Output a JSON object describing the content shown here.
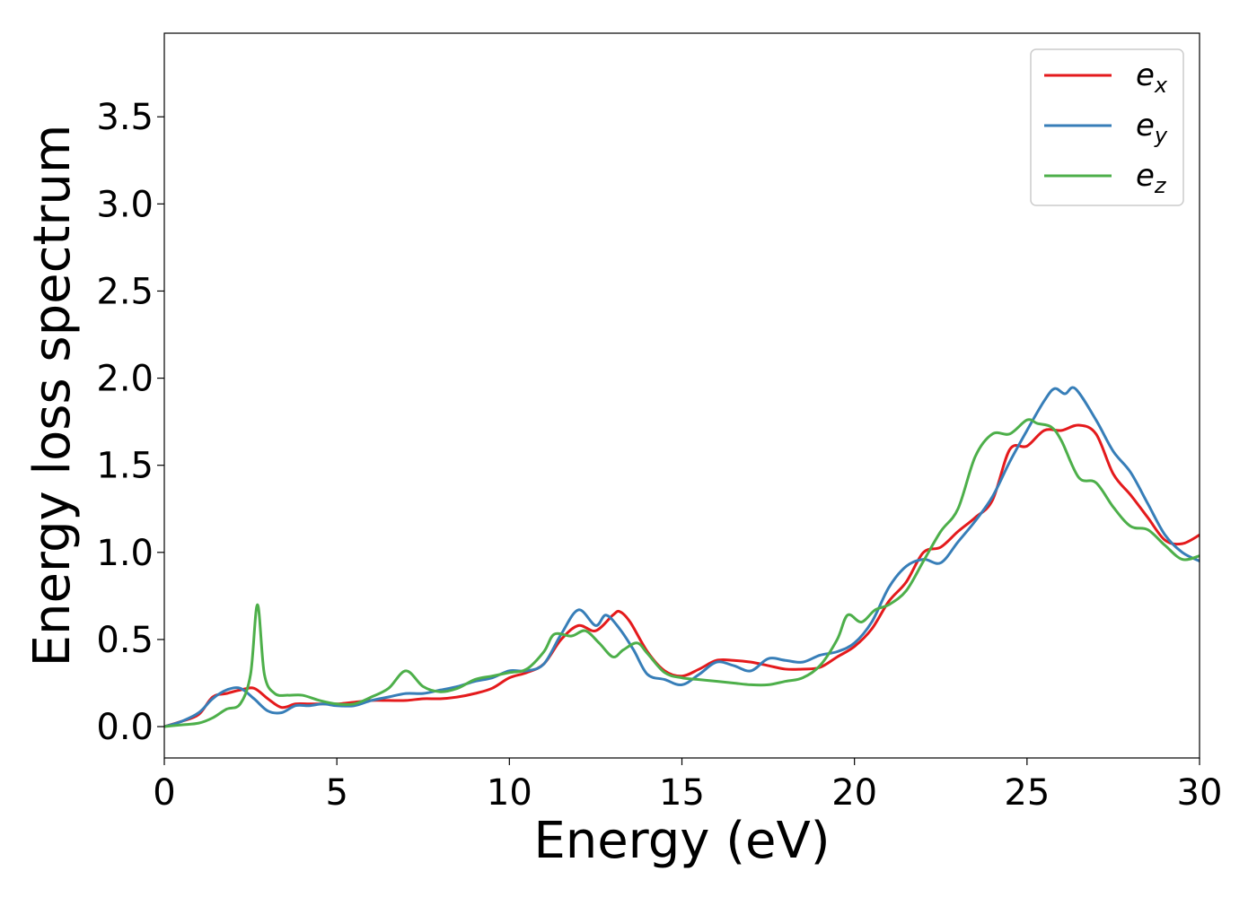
{
  "chart_data": {
    "type": "line",
    "xlabel": "Energy (eV)",
    "ylabel": "Energy loss spectrum",
    "xlim": [
      0,
      30
    ],
    "ylim": [
      -0.18,
      3.98
    ],
    "xticks": [
      0,
      5,
      10,
      15,
      20,
      25,
      30
    ],
    "xtick_labels": [
      "0",
      "5",
      "10",
      "15",
      "20",
      "25",
      "30"
    ],
    "yticks": [
      0.0,
      0.5,
      1.0,
      1.5,
      2.0,
      2.5,
      3.0,
      3.5
    ],
    "ytick_labels": [
      "0.0",
      "0.5",
      "1.0",
      "1.5",
      "2.0",
      "2.5",
      "3.0",
      "3.5"
    ],
    "grid": false,
    "legend_position": "top-right",
    "series": [
      {
        "name": "e_x",
        "label_main": "e",
        "label_sub": "x",
        "color": "#e41a1c",
        "x": [
          0,
          0.5,
          1,
          1.4,
          1.8,
          2.2,
          2.6,
          3,
          3.4,
          3.8,
          4.2,
          4.6,
          5,
          5.5,
          6,
          6.5,
          7,
          7.5,
          8,
          8.5,
          9,
          9.5,
          10,
          10.5,
          11,
          11.5,
          12,
          12.5,
          13,
          13.2,
          13.5,
          14,
          14.5,
          15,
          15.5,
          16,
          16.5,
          17,
          17.5,
          18,
          18.5,
          19,
          19.5,
          20,
          20.5,
          21,
          21.5,
          22,
          22.5,
          23,
          23.5,
          24,
          24.5,
          25,
          25.5,
          26,
          26.5,
          27,
          27.5,
          28,
          28.5,
          29,
          29.5,
          30
        ],
        "y": [
          0,
          0.03,
          0.07,
          0.17,
          0.19,
          0.21,
          0.22,
          0.16,
          0.11,
          0.13,
          0.13,
          0.13,
          0.13,
          0.14,
          0.15,
          0.15,
          0.15,
          0.16,
          0.16,
          0.17,
          0.19,
          0.22,
          0.28,
          0.31,
          0.36,
          0.5,
          0.58,
          0.55,
          0.64,
          0.66,
          0.6,
          0.43,
          0.32,
          0.29,
          0.33,
          0.38,
          0.38,
          0.37,
          0.35,
          0.33,
          0.33,
          0.34,
          0.4,
          0.46,
          0.56,
          0.72,
          0.83,
          1.0,
          1.03,
          1.12,
          1.2,
          1.3,
          1.59,
          1.61,
          1.7,
          1.7,
          1.73,
          1.68,
          1.45,
          1.33,
          1.2,
          1.07,
          1.05,
          1.1
        ]
      },
      {
        "name": "e_y",
        "label_main": "e",
        "label_sub": "y",
        "color": "#377eb8",
        "x": [
          0,
          0.5,
          1,
          1.4,
          1.8,
          2.2,
          2.6,
          3,
          3.4,
          3.8,
          4.2,
          4.6,
          5,
          5.5,
          6,
          6.5,
          7,
          7.5,
          8,
          8.5,
          9,
          9.5,
          10,
          10.5,
          11,
          11.5,
          12,
          12.5,
          12.8,
          13.2,
          13.6,
          14,
          14.5,
          15,
          15.5,
          16,
          16.5,
          17,
          17.5,
          18,
          18.5,
          19,
          19.5,
          20,
          20.5,
          21,
          21.5,
          22,
          22.5,
          23,
          23.5,
          24,
          24.5,
          25,
          25.5,
          25.8,
          26.1,
          26.4,
          27,
          27.5,
          28,
          28.5,
          29,
          29.5,
          30
        ],
        "y": [
          0,
          0.03,
          0.08,
          0.16,
          0.21,
          0.22,
          0.16,
          0.09,
          0.08,
          0.12,
          0.12,
          0.13,
          0.12,
          0.12,
          0.15,
          0.17,
          0.19,
          0.19,
          0.21,
          0.23,
          0.26,
          0.28,
          0.32,
          0.32,
          0.36,
          0.53,
          0.67,
          0.58,
          0.64,
          0.56,
          0.44,
          0.3,
          0.27,
          0.24,
          0.3,
          0.37,
          0.35,
          0.32,
          0.39,
          0.38,
          0.37,
          0.41,
          0.43,
          0.48,
          0.6,
          0.8,
          0.92,
          0.96,
          0.94,
          1.06,
          1.18,
          1.32,
          1.52,
          1.7,
          1.87,
          1.94,
          1.91,
          1.94,
          1.76,
          1.58,
          1.46,
          1.28,
          1.1,
          1.0,
          0.95
        ]
      },
      {
        "name": "e_z",
        "label_main": "e",
        "label_sub": "z",
        "color": "#4daf4a",
        "x": [
          0,
          0.5,
          1,
          1.4,
          1.8,
          2.2,
          2.5,
          2.7,
          2.9,
          3.2,
          3.6,
          4,
          4.5,
          5,
          5.5,
          6,
          6.5,
          7,
          7.5,
          8,
          8.5,
          9,
          9.5,
          10,
          10.5,
          11,
          11.3,
          11.8,
          12.2,
          12.6,
          13,
          13.3,
          13.7,
          14,
          14.5,
          15,
          15.5,
          16,
          16.5,
          17,
          17.5,
          18,
          18.5,
          19,
          19.5,
          19.8,
          20.2,
          20.6,
          21,
          21.5,
          22,
          22.5,
          23,
          23.5,
          24,
          24.5,
          25,
          25.3,
          25.7,
          26,
          26.5,
          27,
          27.5,
          28,
          28.5,
          29,
          29.5,
          30
        ],
        "y": [
          0,
          0.01,
          0.02,
          0.05,
          0.1,
          0.13,
          0.3,
          0.7,
          0.3,
          0.19,
          0.18,
          0.18,
          0.15,
          0.13,
          0.13,
          0.17,
          0.22,
          0.32,
          0.23,
          0.2,
          0.22,
          0.27,
          0.29,
          0.31,
          0.33,
          0.43,
          0.53,
          0.52,
          0.55,
          0.48,
          0.4,
          0.44,
          0.48,
          0.42,
          0.31,
          0.28,
          0.27,
          0.26,
          0.25,
          0.24,
          0.24,
          0.26,
          0.28,
          0.35,
          0.5,
          0.64,
          0.6,
          0.67,
          0.7,
          0.78,
          0.95,
          1.12,
          1.25,
          1.55,
          1.68,
          1.68,
          1.76,
          1.74,
          1.72,
          1.64,
          1.43,
          1.4,
          1.26,
          1.15,
          1.13,
          1.04,
          0.96,
          0.98
        ]
      }
    ]
  }
}
